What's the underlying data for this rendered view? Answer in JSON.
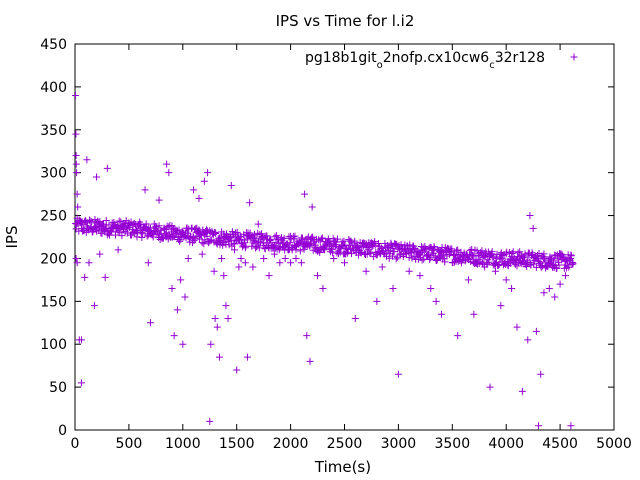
{
  "chart_data": {
    "type": "scatter",
    "title": "IPS vs Time for l.i2",
    "xlabel": "Time(s)",
    "ylabel": "IPS",
    "xlim": [
      0,
      5000
    ],
    "ylim": [
      0,
      450
    ],
    "xticks": [
      0,
      500,
      1000,
      1500,
      2000,
      2500,
      3000,
      3500,
      4000,
      4500,
      5000
    ],
    "yticks": [
      0,
      50,
      100,
      150,
      200,
      250,
      300,
      350,
      400,
      450
    ],
    "grid": false,
    "legend_position": "top-right",
    "series": [
      {
        "name_parts": [
          "pg18b1git",
          "o",
          "2nofp.cx10cw6",
          "c",
          "32r128"
        ],
        "name": "pg18b1git_o2nofp.cx10cw6_c32r128",
        "color": "#9400d3",
        "marker": "plus",
        "main_band": [
          [
            0,
            238
          ],
          [
            500,
            235
          ],
          [
            1000,
            228
          ],
          [
            1500,
            222
          ],
          [
            2000,
            218
          ],
          [
            2500,
            214
          ],
          [
            3000,
            208
          ],
          [
            3500,
            204
          ],
          [
            4000,
            200
          ],
          [
            4620,
            196
          ]
        ],
        "points": [
          [
            5,
            390
          ],
          [
            8,
            345
          ],
          [
            10,
            320
          ],
          [
            12,
            310
          ],
          [
            15,
            300
          ],
          [
            20,
            275
          ],
          [
            25,
            260
          ],
          [
            10,
            200
          ],
          [
            20,
            195
          ],
          [
            40,
            105
          ],
          [
            60,
            105
          ],
          [
            60,
            55
          ],
          [
            90,
            178
          ],
          [
            110,
            315
          ],
          [
            130,
            195
          ],
          [
            180,
            145
          ],
          [
            200,
            295
          ],
          [
            230,
            205
          ],
          [
            280,
            178
          ],
          [
            300,
            305
          ],
          [
            340,
            235
          ],
          [
            400,
            210
          ],
          [
            650,
            280
          ],
          [
            680,
            195
          ],
          [
            700,
            125
          ],
          [
            780,
            268
          ],
          [
            850,
            310
          ],
          [
            870,
            300
          ],
          [
            900,
            165
          ],
          [
            920,
            110
          ],
          [
            950,
            140
          ],
          [
            980,
            175
          ],
          [
            1000,
            100
          ],
          [
            1020,
            155
          ],
          [
            1050,
            200
          ],
          [
            1100,
            280
          ],
          [
            1150,
            270
          ],
          [
            1180,
            205
          ],
          [
            1200,
            290
          ],
          [
            1230,
            300
          ],
          [
            1250,
            10
          ],
          [
            1260,
            100
          ],
          [
            1290,
            185
          ],
          [
            1300,
            130
          ],
          [
            1320,
            120
          ],
          [
            1340,
            85
          ],
          [
            1360,
            200
          ],
          [
            1380,
            180
          ],
          [
            1400,
            145
          ],
          [
            1420,
            130
          ],
          [
            1450,
            285
          ],
          [
            1480,
            210
          ],
          [
            1500,
            70
          ],
          [
            1520,
            190
          ],
          [
            1540,
            200
          ],
          [
            1580,
            195
          ],
          [
            1600,
            85
          ],
          [
            1620,
            265
          ],
          [
            1650,
            190
          ],
          [
            1700,
            240
          ],
          [
            1750,
            200
          ],
          [
            1800,
            180
          ],
          [
            1850,
            205
          ],
          [
            1900,
            195
          ],
          [
            1950,
            200
          ],
          [
            2000,
            195
          ],
          [
            2050,
            200
          ],
          [
            2100,
            195
          ],
          [
            2130,
            275
          ],
          [
            2150,
            110
          ],
          [
            2180,
            80
          ],
          [
            2200,
            260
          ],
          [
            2250,
            180
          ],
          [
            2300,
            165
          ],
          [
            2400,
            200
          ],
          [
            2500,
            195
          ],
          [
            2600,
            130
          ],
          [
            2700,
            185
          ],
          [
            2800,
            150
          ],
          [
            2850,
            190
          ],
          [
            2950,
            165
          ],
          [
            3000,
            65
          ],
          [
            3100,
            185
          ],
          [
            3200,
            180
          ],
          [
            3300,
            165
          ],
          [
            3350,
            150
          ],
          [
            3400,
            135
          ],
          [
            3550,
            110
          ],
          [
            3650,
            175
          ],
          [
            3700,
            135
          ],
          [
            3800,
            190
          ],
          [
            3850,
            50
          ],
          [
            3900,
            185
          ],
          [
            3950,
            145
          ],
          [
            4000,
            175
          ],
          [
            4050,
            165
          ],
          [
            4100,
            120
          ],
          [
            4150,
            45
          ],
          [
            4200,
            105
          ],
          [
            4220,
            250
          ],
          [
            4250,
            235
          ],
          [
            4280,
            115
          ],
          [
            4300,
            5
          ],
          [
            4320,
            65
          ],
          [
            4350,
            160
          ],
          [
            4400,
            165
          ],
          [
            4450,
            155
          ],
          [
            4500,
            170
          ],
          [
            4550,
            180
          ],
          [
            4600,
            5
          ]
        ]
      }
    ]
  }
}
